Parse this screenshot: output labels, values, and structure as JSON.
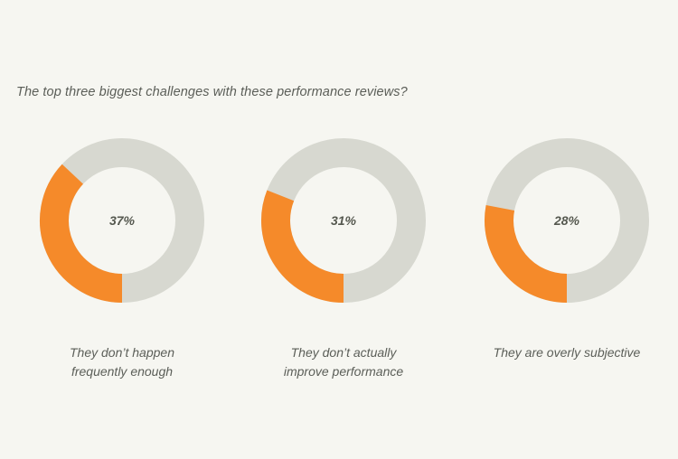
{
  "title": "The top three biggest challenges with these performance reviews?",
  "colors": {
    "background": "#f6f6f1",
    "highlight": "#f58a2a",
    "track": "#d7d8d0",
    "text": "#5b5e58"
  },
  "chart_data": [
    {
      "type": "pie",
      "title": "The top three biggest challenges with these performance reviews?",
      "categories": [
        "They don’t happen\nfrequently enough"
      ],
      "values": [
        37
      ],
      "label": "37%",
      "caption": "They don’t happen\nfrequently enough"
    },
    {
      "type": "pie",
      "categories": [
        "They don’t actually\nimprove performance"
      ],
      "values": [
        31
      ],
      "label": "31%",
      "caption": "They don’t actually\nimprove performance"
    },
    {
      "type": "pie",
      "categories": [
        "They are overly subjective"
      ],
      "values": [
        28
      ],
      "label": "28%",
      "caption": "They are overly subjective"
    }
  ]
}
